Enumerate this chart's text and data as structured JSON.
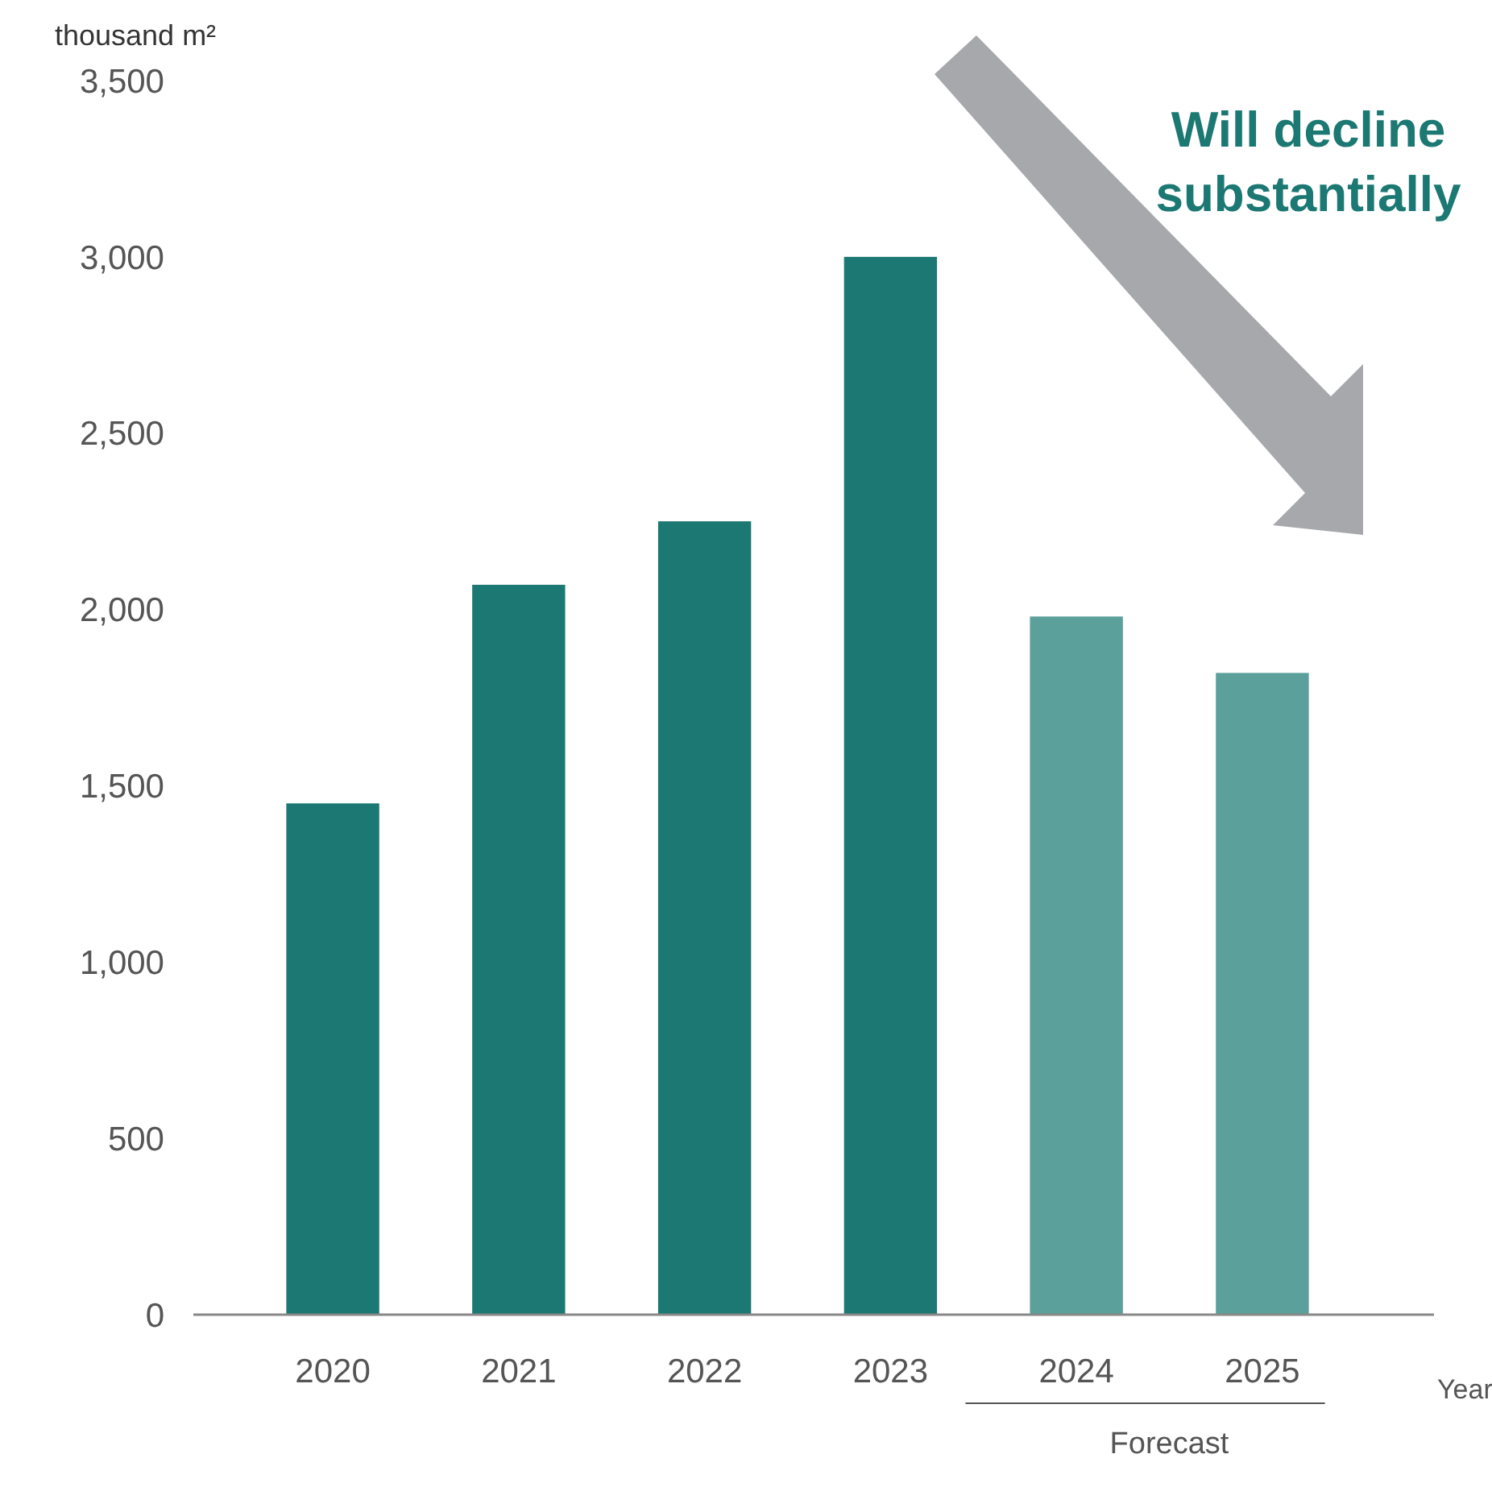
{
  "chart_data": {
    "type": "bar",
    "ylabel": "thousand m²",
    "xlabel": "Year",
    "categories": [
      "2020",
      "2021",
      "2022",
      "2023",
      "2024",
      "2025"
    ],
    "values": [
      1450,
      2070,
      2250,
      3000,
      1980,
      1820
    ],
    "colors": [
      "#1b7872",
      "#1b7872",
      "#1b7872",
      "#1b7872",
      "#5ba09a",
      "#5ba09a"
    ],
    "ylim": [
      0,
      3500
    ],
    "yticks": [
      {
        "value": 0,
        "label": "0"
      },
      {
        "value": 500,
        "label": "500"
      },
      {
        "value": 1000,
        "label": "1,000"
      },
      {
        "value": 1500,
        "label": "1,500"
      },
      {
        "value": 2000,
        "label": "2,000"
      },
      {
        "value": 2500,
        "label": "2,500"
      },
      {
        "value": 3000,
        "label": "3,000"
      },
      {
        "value": 3500,
        "label": "3,500"
      }
    ],
    "annotations": [
      "Will decline substantially",
      "Forecast"
    ],
    "grid": false
  }
}
